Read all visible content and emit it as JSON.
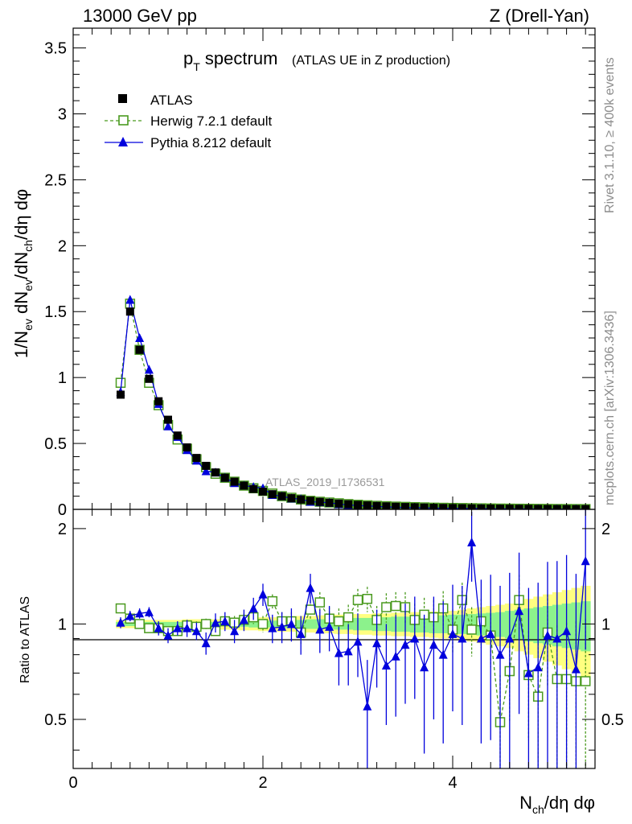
{
  "header": {
    "left": "13000 GeV pp",
    "right": "Z (Drell-Yan)"
  },
  "title": {
    "main_p": "p",
    "main_sub": "T",
    "main_rest": " spectrum",
    "note": "(ATLAS UE in Z production)"
  },
  "side_labels": {
    "rivet": "Rivet 3.1.10, ≥ 400k events",
    "mcplots": "mcplots.cern.ch [arXiv:1306.3436]"
  },
  "watermark": "ATLAS_2019_I1736531",
  "chart_data": [
    {
      "type": "scatter",
      "panel": "main",
      "ylabel": "1/N_ev dN_ev/dN_ch/dη dφ",
      "ylim": [
        0,
        3.65
      ],
      "xlim": [
        0,
        5.5
      ],
      "yticks": [
        "0",
        "0.5",
        "1",
        "1.5",
        "2",
        "2.5",
        "3",
        "3.5"
      ],
      "x": [
        0.5,
        0.6,
        0.7,
        0.8,
        0.9,
        1.0,
        1.1,
        1.2,
        1.3,
        1.4,
        1.5,
        1.6,
        1.7,
        1.8,
        1.9,
        2.0,
        2.1,
        2.2,
        2.3,
        2.4,
        2.5,
        2.6,
        2.7,
        2.8,
        2.9,
        3.0,
        3.1,
        3.2,
        3.3,
        3.4,
        3.5,
        3.6,
        3.7,
        3.8,
        3.9,
        4.0,
        4.1,
        4.2,
        4.3,
        4.4,
        4.5,
        4.6,
        4.7,
        4.8,
        4.9,
        5.0,
        5.1,
        5.2,
        5.3,
        5.4
      ],
      "series": [
        {
          "name": "ATLAS",
          "color": "#000000",
          "marker": "filled-square",
          "values": [
            0.87,
            1.5,
            1.21,
            0.99,
            0.82,
            0.68,
            0.56,
            0.47,
            0.39,
            0.33,
            0.28,
            0.24,
            0.21,
            0.18,
            0.155,
            0.135,
            0.115,
            0.1,
            0.085,
            0.075,
            0.065,
            0.057,
            0.05,
            0.044,
            0.039,
            0.034,
            0.03,
            0.026,
            0.023,
            0.02,
            0.018,
            0.016,
            0.014,
            0.012,
            0.011,
            0.01,
            0.009,
            0.008,
            0.007,
            0.006,
            0.0055,
            0.005,
            0.0045,
            0.004,
            0.0035,
            0.003,
            0.0027,
            0.0024,
            0.0021,
            0.0019
          ]
        },
        {
          "name": "Herwig 7.2.1 default",
          "color": "#4a9a1f",
          "marker": "open-square",
          "line": "dashed",
          "values": [
            0.96,
            1.56,
            1.21,
            0.96,
            0.79,
            0.64,
            0.53,
            0.46,
            0.38,
            0.32,
            0.27,
            0.24,
            0.21,
            0.18,
            0.16,
            0.14,
            0.12,
            0.1,
            0.088,
            0.075,
            0.065,
            0.058,
            0.052,
            0.046,
            0.04,
            0.035,
            0.031,
            0.027,
            0.024,
            0.021,
            0.019,
            0.017,
            0.015,
            0.013,
            0.012,
            0.011,
            0.01,
            0.009,
            0.008,
            0.007,
            0.0062,
            0.0055,
            0.005,
            0.0045,
            0.004,
            0.0035,
            0.003,
            0.0027,
            0.0024,
            0.0021
          ]
        },
        {
          "name": "Pythia 8.212 default",
          "color": "#0000dd",
          "marker": "filled-triangle",
          "line": "solid",
          "values": [
            0.89,
            1.59,
            1.3,
            1.06,
            0.8,
            0.63,
            0.55,
            0.45,
            0.37,
            0.29,
            0.28,
            0.24,
            0.2,
            0.18,
            0.17,
            0.16,
            0.11,
            0.1,
            0.083,
            0.078,
            0.058,
            0.055,
            0.05,
            0.04,
            0.033,
            0.03,
            0.025,
            0.024,
            0.018,
            0.017,
            0.013,
            0.014,
            0.011,
            0.01,
            0.008,
            0.009,
            0.007,
            0.008,
            0.006,
            0.005,
            0.004,
            0.004,
            0.0035,
            0.003,
            0.003,
            0.002,
            0.002,
            0.002,
            0.0015,
            0.0015
          ]
        }
      ]
    },
    {
      "type": "scatter",
      "panel": "ratio",
      "ylabel": "Ratio to ATLAS",
      "xlabel": "N_ch/dη dφ",
      "ylim": [
        0.35,
        2.3
      ],
      "xlim": [
        0,
        5.5
      ],
      "xticks": [
        "0",
        "2",
        "4"
      ],
      "yticks": [
        "0.5",
        "1",
        "2"
      ],
      "x": [
        0.5,
        0.6,
        0.7,
        0.8,
        0.9,
        1.0,
        1.1,
        1.2,
        1.3,
        1.4,
        1.5,
        1.6,
        1.7,
        1.8,
        1.9,
        2.0,
        2.1,
        2.2,
        2.3,
        2.4,
        2.5,
        2.6,
        2.7,
        2.8,
        2.9,
        3.0,
        3.1,
        3.2,
        3.3,
        3.4,
        3.5,
        3.6,
        3.7,
        3.8,
        3.9,
        4.0,
        4.1,
        4.2,
        4.3,
        4.4,
        4.5,
        4.6,
        4.7,
        4.8,
        4.9,
        5.0,
        5.1,
        5.2,
        5.3,
        5.4
      ],
      "band_inner": [
        0.015,
        0.015,
        0.015,
        0.015,
        0.015,
        0.015,
        0.015,
        0.015,
        0.015,
        0.015,
        0.015,
        0.015,
        0.02,
        0.02,
        0.025,
        0.025,
        0.025,
        0.03,
        0.03,
        0.03,
        0.035,
        0.035,
        0.035,
        0.04,
        0.04,
        0.045,
        0.045,
        0.05,
        0.05,
        0.055,
        0.055,
        0.06,
        0.06,
        0.065,
        0.065,
        0.07,
        0.07,
        0.075,
        0.08,
        0.085,
        0.09,
        0.1,
        0.11,
        0.12,
        0.13,
        0.14,
        0.15,
        0.16,
        0.17,
        0.18
      ],
      "band_outer": [
        0.03,
        0.03,
        0.03,
        0.03,
        0.03,
        0.03,
        0.03,
        0.035,
        0.035,
        0.035,
        0.035,
        0.04,
        0.04,
        0.045,
        0.045,
        0.05,
        0.05,
        0.055,
        0.055,
        0.06,
        0.06,
        0.065,
        0.065,
        0.07,
        0.07,
        0.075,
        0.075,
        0.08,
        0.08,
        0.085,
        0.085,
        0.09,
        0.09,
        0.095,
        0.1,
        0.1,
        0.11,
        0.12,
        0.13,
        0.14,
        0.15,
        0.16,
        0.18,
        0.2,
        0.22,
        0.24,
        0.26,
        0.28,
        0.3,
        0.32
      ],
      "series": [
        {
          "name": "Herwig 7.2.1 default",
          "color": "#4a9a1f",
          "marker": "open-square",
          "line": "dashed",
          "values": [
            1.12,
            1.04,
            1.0,
            0.97,
            0.97,
            0.95,
            0.95,
            0.99,
            0.98,
            1.0,
            0.95,
            1.02,
            1.01,
            1.03,
            1.05,
            1.0,
            1.18,
            1.02,
            1.02,
            0.94,
            1.11,
            1.17,
            1.04,
            1.02,
            1.05,
            1.19,
            1.2,
            1.03,
            1.13,
            1.14,
            1.13,
            1.03,
            1.07,
            1.05,
            1.12,
            0.96,
            1.19,
            0.96,
            1.02,
            0.92,
            0.49,
            0.71,
            1.19,
            0.69,
            0.59,
            0.94,
            0.67,
            0.67,
            0.66,
            0.66
          ],
          "err": [
            0.03,
            0.03,
            0.03,
            0.03,
            0.03,
            0.03,
            0.03,
            0.04,
            0.04,
            0.04,
            0.04,
            0.04,
            0.05,
            0.05,
            0.05,
            0.06,
            0.06,
            0.07,
            0.07,
            0.08,
            0.08,
            0.09,
            0.09,
            0.1,
            0.1,
            0.1,
            0.11,
            0.11,
            0.12,
            0.12,
            0.13,
            0.13,
            0.14,
            0.14,
            0.15,
            0.15,
            0.16,
            0.17,
            0.18,
            0.19,
            0.2,
            0.22,
            0.24,
            0.26,
            0.28,
            0.3,
            0.32,
            0.34,
            0.36,
            0.38
          ]
        },
        {
          "name": "Pythia 8.212 default",
          "color": "#0000dd",
          "marker": "filled-triangle",
          "line": "solid",
          "values": [
            1.01,
            1.06,
            1.08,
            1.09,
            0.97,
            0.92,
            0.97,
            0.97,
            0.95,
            0.87,
            1.01,
            1.02,
            0.95,
            1.03,
            1.12,
            1.24,
            0.97,
            0.98,
            1.0,
            0.93,
            1.3,
            0.96,
            0.98,
            0.81,
            0.82,
            0.88,
            0.55,
            0.87,
            0.74,
            0.79,
            0.86,
            0.9,
            0.73,
            0.86,
            0.8,
            0.93,
            0.9,
            1.81,
            0.9,
            0.93,
            0.8,
            0.9,
            1.1,
            0.7,
            0.73,
            0.92,
            0.9,
            0.95,
            0.72,
            1.58
          ],
          "err": [
            0.04,
            0.04,
            0.04,
            0.04,
            0.05,
            0.05,
            0.05,
            0.06,
            0.06,
            0.07,
            0.07,
            0.07,
            0.08,
            0.08,
            0.09,
            0.1,
            0.1,
            0.11,
            0.12,
            0.13,
            0.14,
            0.15,
            0.16,
            0.17,
            0.18,
            0.2,
            0.22,
            0.24,
            0.26,
            0.28,
            0.3,
            0.32,
            0.34,
            0.36,
            0.38,
            0.4,
            0.42,
            0.45,
            0.48,
            0.5,
            0.52,
            0.55,
            0.58,
            0.6,
            0.62,
            0.65,
            0.68,
            0.7,
            0.72,
            0.75
          ]
        }
      ]
    }
  ]
}
